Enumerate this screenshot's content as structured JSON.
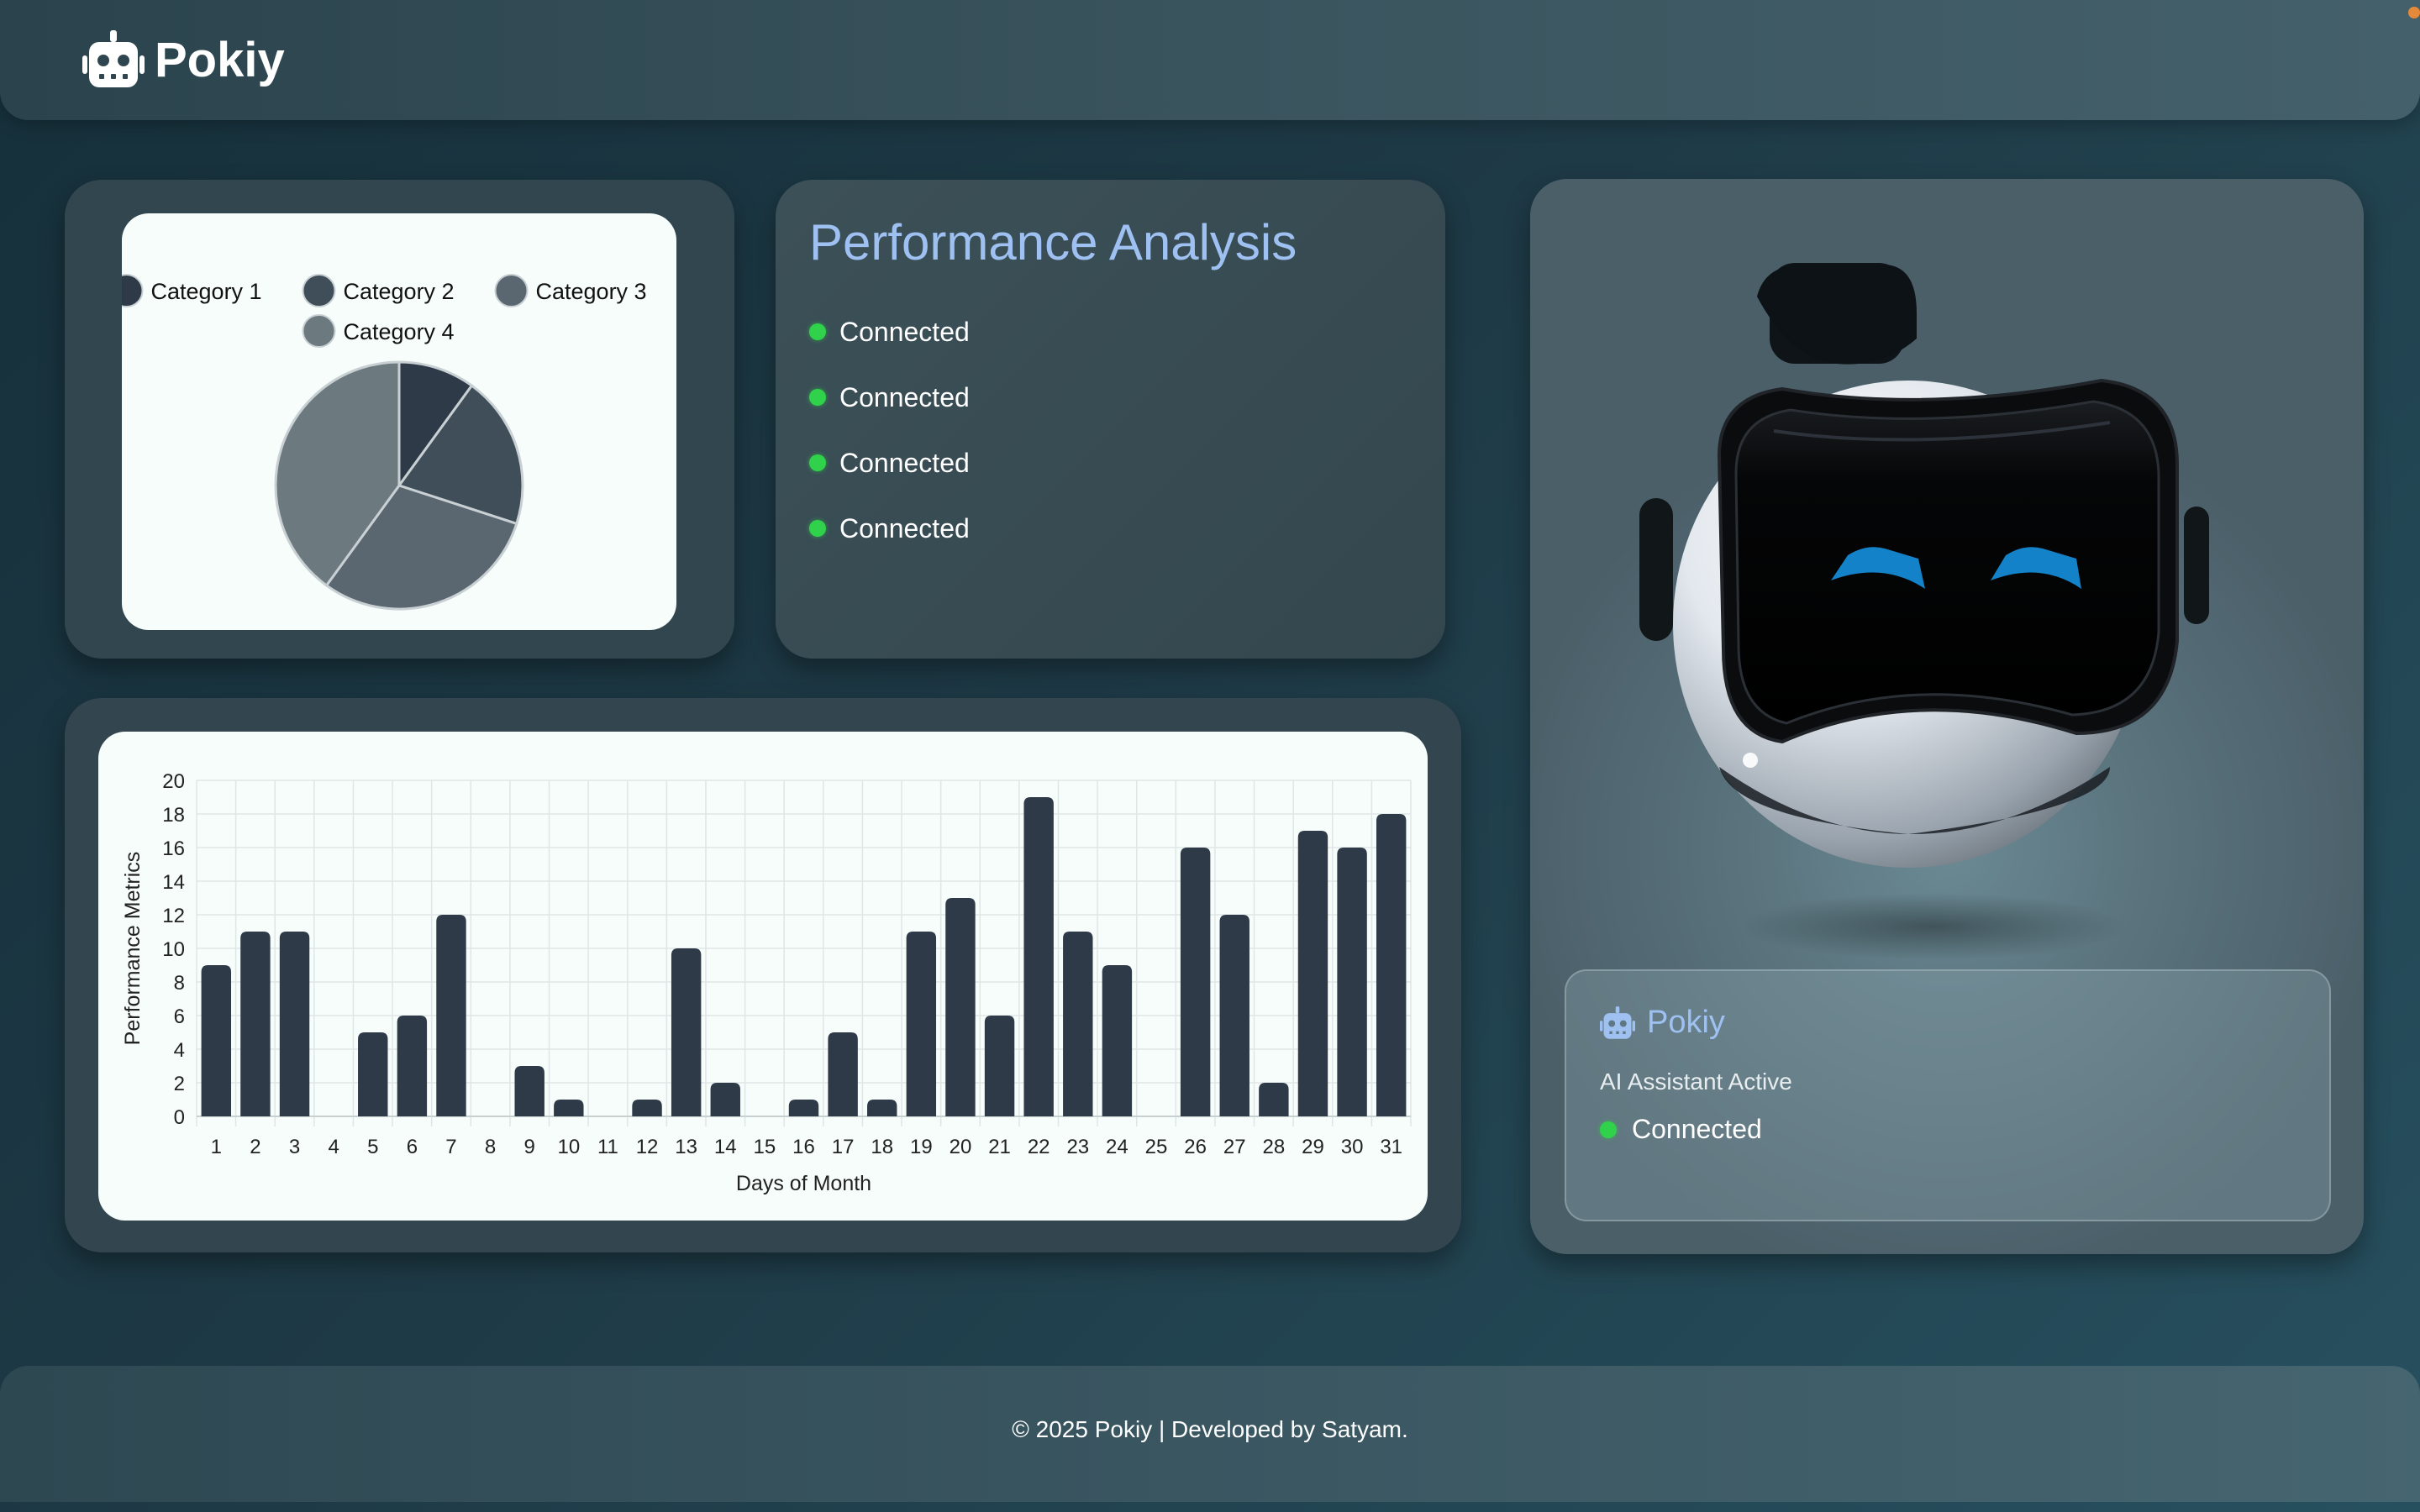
{
  "header": {
    "brand": "Pokiy",
    "logo_icon": "robot-icon"
  },
  "pie_chart": {
    "chart_data": {
      "type": "pie",
      "legend_placement": "top",
      "series": [
        {
          "name": "Category 1",
          "value": 10,
          "color": "#2e3a48"
        },
        {
          "name": "Category 2",
          "value": 20,
          "color": "#404e5a"
        },
        {
          "name": "Category 3",
          "value": 30,
          "color": "#5a6670"
        },
        {
          "name": "Category 4",
          "value": 40,
          "color": "#6c7a80"
        }
      ]
    }
  },
  "performance": {
    "title": "Performance Analysis",
    "statuses": [
      "Connected",
      "Connected",
      "Connected",
      "Connected"
    ],
    "status_color": "#2fd24a"
  },
  "bar_chart": {
    "chart_data": {
      "type": "bar",
      "xlabel": "Days of Month",
      "ylabel": "Performance Metrics",
      "ylim": [
        0,
        20
      ],
      "yticks": [
        0,
        2,
        4,
        6,
        8,
        10,
        12,
        14,
        16,
        18,
        20
      ],
      "grid": true,
      "bar_color": "#2e3a48",
      "categories": [
        "1",
        "2",
        "3",
        "4",
        "5",
        "6",
        "7",
        "8",
        "9",
        "10",
        "11",
        "12",
        "13",
        "14",
        "15",
        "16",
        "17",
        "18",
        "19",
        "20",
        "21",
        "22",
        "23",
        "24",
        "25",
        "26",
        "27",
        "28",
        "29",
        "30",
        "31"
      ],
      "values": [
        9,
        11,
        11,
        0,
        5,
        6,
        12,
        0,
        3,
        1,
        0,
        1,
        10,
        2,
        0,
        1,
        5,
        1,
        11,
        13,
        6,
        19,
        11,
        9,
        0,
        16,
        12,
        2,
        17,
        16,
        18
      ]
    }
  },
  "assistant": {
    "name": "Pokiy",
    "icon": "robot-icon",
    "subtitle": "AI Assistant Active",
    "status": "Connected"
  },
  "footer": {
    "text": "© 2025 Pokiy | Developed by Satyam."
  }
}
